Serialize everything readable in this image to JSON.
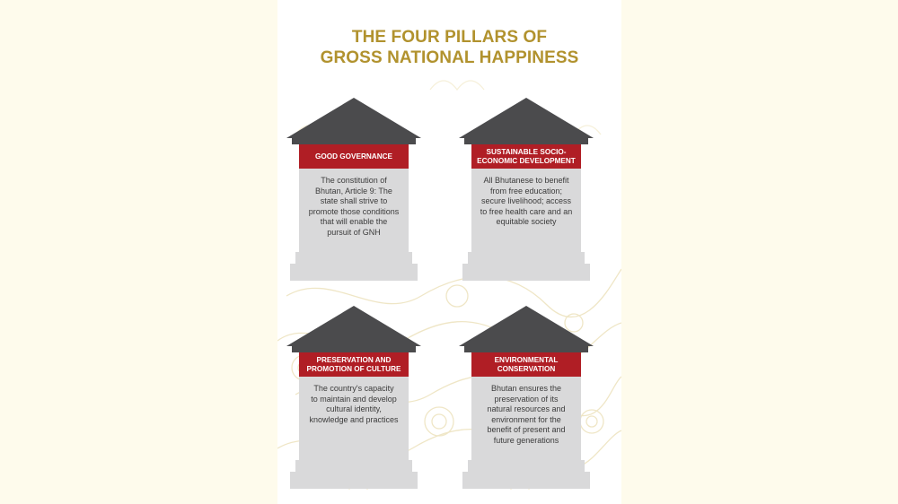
{
  "title": {
    "line1": "THE FOUR PILLARS OF",
    "line2": "GROSS NATIONAL HAPPINESS"
  },
  "pillars": [
    {
      "heading": [
        "GOOD GOVERNANCE"
      ],
      "text": [
        "The constitution of",
        "Bhutan, Article 9: The",
        "state shall strive to",
        "promote those conditions",
        "that will enable the",
        "pursuit of GNH"
      ]
    },
    {
      "heading": [
        "SUSTAINABLE SOCIO-",
        "ECONOMIC DEVELOPMENT"
      ],
      "text": [
        "All Bhutanese to benefit",
        "from free education;",
        "secure livelihood; access",
        "to free health care and an",
        "equitable society"
      ]
    },
    {
      "heading": [
        "PRESERVATION AND",
        "PROMOTION OF CULTURE"
      ],
      "text": [
        "The country's capacity",
        "to maintain and develop",
        "cultural identity,",
        "knowledge and practices"
      ]
    },
    {
      "heading": [
        "ENVIRONMENTAL",
        "CONSERVATION"
      ],
      "text": [
        "Bhutan ensures the",
        "preservation of its",
        "natural resources and",
        "environment for the",
        "benefit of present and",
        "future generations"
      ]
    }
  ],
  "colors": {
    "title": "#b1922e",
    "roof": "#4b4b4d",
    "banner": "#b01e25",
    "column": "#d9d9da",
    "outside": "#fefbec"
  }
}
